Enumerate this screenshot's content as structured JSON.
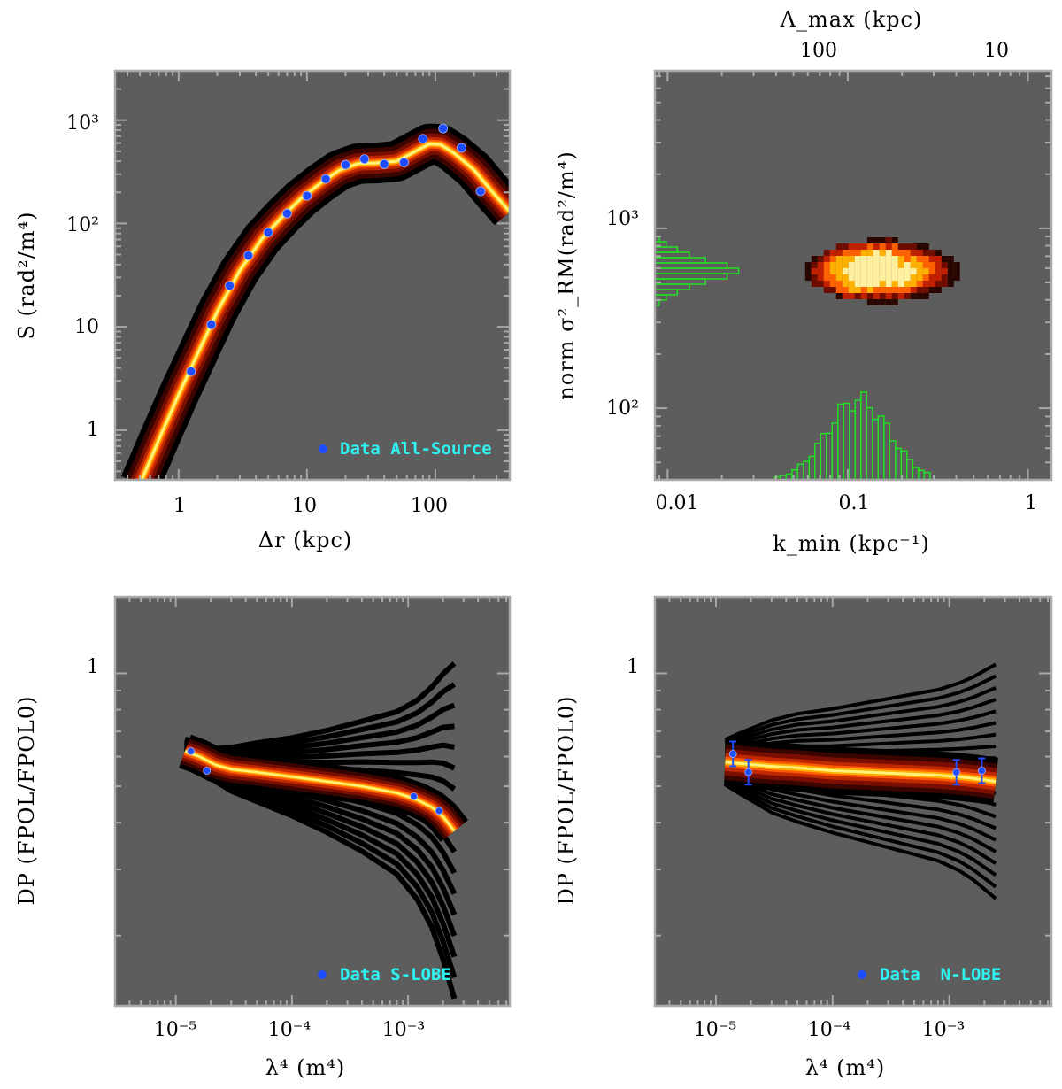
{
  "colors": {
    "panel_bg": "#5d5d5d",
    "frame": "#a8a8a8",
    "data_point": "#1f4cff",
    "legend_text": "#2ef2f2",
    "histogram": "#22e022",
    "heat_core": "#fff27a"
  },
  "chart_data": [
    {
      "id": "panel_a",
      "type": "line",
      "title": "",
      "xlabel": "Δr (kpc)",
      "ylabel": "S (rad²/m⁴)",
      "xscale": "log",
      "yscale": "log",
      "xlim": [
        0.32,
        380
      ],
      "ylim": [
        0.33,
        3000
      ],
      "x_tick_labels": [
        "1",
        "10",
        "100"
      ],
      "y_tick_labels": [
        "1",
        "10",
        "10²",
        "10³"
      ],
      "legend": {
        "marker": "dot",
        "label": "Data All-Source",
        "position": "bottom-right"
      },
      "series": [
        {
          "name": "Data All-Source",
          "kind": "points",
          "x": [
            1.25,
            1.8,
            2.5,
            3.5,
            5,
            7,
            10,
            14,
            20,
            28,
            40,
            57,
            80,
            115,
            160,
            225
          ],
          "y": [
            3.7,
            10.5,
            25,
            49,
            82,
            125,
            185,
            270,
            370,
            420,
            375,
            390,
            660,
            830,
            540,
            205
          ]
        },
        {
          "name": "Model ensemble (median)",
          "kind": "band",
          "x": [
            0.5,
            0.7,
            1,
            1.5,
            2,
            3,
            4.5,
            6.5,
            9,
            13,
            18,
            25,
            35,
            50,
            70,
            90,
            110,
            140,
            200,
            280,
            380
          ],
          "y": [
            0.3,
            0.8,
            2.2,
            6.5,
            14,
            35,
            72,
            118,
            175,
            250,
            330,
            380,
            385,
            400,
            500,
            590,
            580,
            480,
            330,
            200,
            130
          ]
        }
      ]
    },
    {
      "id": "panel_b",
      "type": "heatmap",
      "title": "",
      "xlabel": "k_min (kpc⁻¹)",
      "ylabel": "norm σ²_RM(rad²/m⁴)",
      "top_axis_label": "Λ_max (kpc)",
      "top_tick_labels": [
        "100",
        "10"
      ],
      "xscale": "log",
      "yscale": "log",
      "xlim": [
        0.0085,
        1.35
      ],
      "ylim": [
        40,
        7500
      ],
      "x_tick_labels": [
        "0.01",
        "0.1",
        "1"
      ],
      "y_tick_labels": [
        "10²",
        "10³"
      ],
      "peak": {
        "k_min": 0.15,
        "sigma2": 600
      },
      "x_histogram_peak": 0.11,
      "y_histogram_peak": 600
    },
    {
      "id": "panel_c",
      "type": "line",
      "title": "",
      "xlabel": "λ⁴ (m⁴)",
      "ylabel": "DP (FPOL/FPOL0)",
      "xscale": "log",
      "yscale": "log",
      "xlim": [
        3e-06,
        0.0075
      ],
      "ylim": [
        0.13,
        1.6
      ],
      "x_tick_labels": [
        "10⁻⁵",
        "10⁻⁴",
        "10⁻³"
      ],
      "y_tick_labels": [
        "1"
      ],
      "legend": {
        "marker": "dot",
        "label": "Data S-LOBE",
        "position": "bottom-right"
      },
      "series": [
        {
          "name": "Data S-LOBE",
          "kind": "points",
          "x": [
            1.35e-05,
            1.85e-05,
            0.00112,
            0.00185
          ],
          "y": [
            0.62,
            0.55,
            0.47,
            0.43
          ]
        },
        {
          "name": "Model ensemble (median)",
          "kind": "band",
          "x": [
            1.2e-05,
            1.6e-05,
            2.2e-05,
            3e-05,
            5e-05,
            0.0001,
            0.0002,
            0.0004,
            0.0008,
            0.0012,
            0.0016,
            0.002,
            0.0025
          ],
          "y": [
            0.62,
            0.6,
            0.57,
            0.555,
            0.545,
            0.53,
            0.515,
            0.5,
            0.48,
            0.46,
            0.44,
            0.415,
            0.38
          ]
        }
      ]
    },
    {
      "id": "panel_d",
      "type": "line",
      "title": "",
      "xlabel": "λ⁴ (m⁴)",
      "ylabel": "DP (FPOL/FPOL0)",
      "xscale": "log",
      "yscale": "log",
      "xlim": [
        3e-06,
        0.0075
      ],
      "ylim": [
        0.13,
        1.6
      ],
      "x_tick_labels": [
        "10⁻⁵",
        "10⁻⁴",
        "10⁻³"
      ],
      "y_tick_labels": [
        "1"
      ],
      "legend": {
        "marker": "dot",
        "label": "Data  N-LOBE",
        "position": "bottom-right"
      },
      "series": [
        {
          "name": "Data N-LOBE",
          "kind": "points",
          "x": [
            1.4e-05,
            1.9e-05,
            0.00115,
            0.0019
          ],
          "y": [
            0.61,
            0.545,
            0.545,
            0.55
          ]
        },
        {
          "name": "Model ensemble (median)",
          "kind": "band",
          "x": [
            1.2e-05,
            1.6e-05,
            2.2e-05,
            3e-05,
            5e-05,
            0.0001,
            0.0002,
            0.0004,
            0.0008,
            0.0012,
            0.0016,
            0.002,
            0.0025
          ],
          "y": [
            0.58,
            0.575,
            0.57,
            0.565,
            0.56,
            0.55,
            0.545,
            0.54,
            0.535,
            0.53,
            0.525,
            0.52,
            0.515
          ]
        }
      ]
    }
  ]
}
